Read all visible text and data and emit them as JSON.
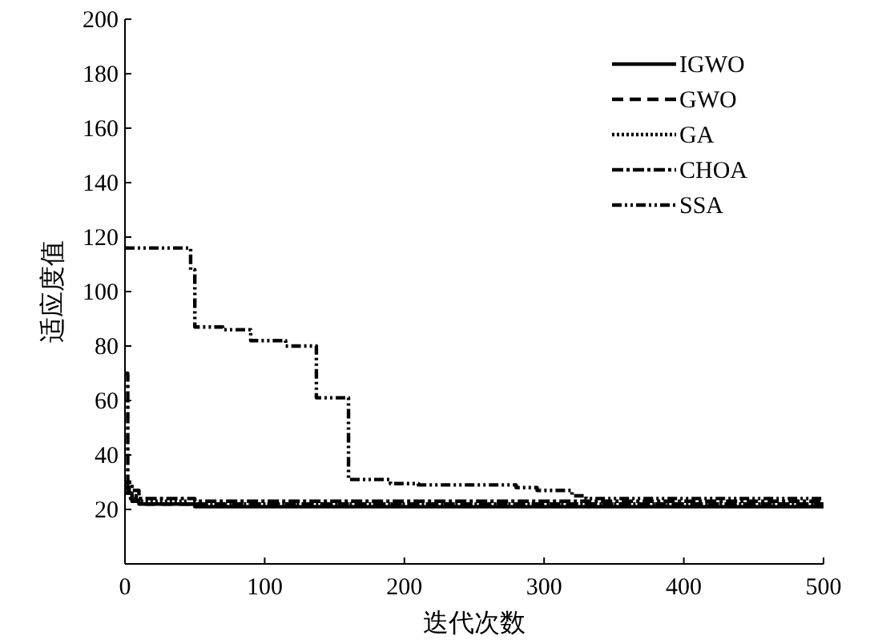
{
  "chart_data": {
    "type": "step",
    "xlabel": "迭代次数",
    "ylabel": "适应度值",
    "xlim": [
      0,
      500
    ],
    "ylim": [
      0,
      200
    ],
    "xticks": [
      0,
      100,
      200,
      300,
      400,
      500
    ],
    "yticks": [
      20,
      40,
      60,
      80,
      100,
      120,
      140,
      160,
      180,
      200
    ],
    "legend": "top right",
    "grid": false,
    "series": [
      {
        "name": "IGWO",
        "color": "#000000",
        "line_style": "solid",
        "x": [
          0,
          2,
          5,
          10,
          20,
          50,
          500
        ],
        "values": [
          30,
          26,
          23,
          22,
          22,
          21,
          21
        ]
      },
      {
        "name": "GWO",
        "color": "#000000",
        "line_style": "dashed",
        "x": [
          0,
          3,
          8,
          15,
          30,
          500
        ],
        "values": [
          28,
          25,
          23,
          22,
          22,
          22
        ]
      },
      {
        "name": "GA",
        "color": "#000000",
        "line_style": "dotted",
        "x": [
          0,
          4,
          10,
          25,
          45,
          500
        ],
        "values": [
          26,
          24,
          23,
          23,
          22,
          22
        ]
      },
      {
        "name": "CHOA",
        "color": "#000000",
        "line_style": "dashdot",
        "x": [
          0,
          2,
          5,
          10,
          45,
          50,
          500
        ],
        "values": [
          70,
          30,
          27,
          24,
          24,
          23,
          23
        ]
      },
      {
        "name": "SSA",
        "color": "#000000",
        "line_style": "dashdotdot",
        "x": [
          0,
          47,
          50,
          70,
          90,
          115,
          137,
          160,
          190,
          210,
          280,
          295,
          320,
          330,
          500
        ],
        "values": [
          116,
          108,
          87,
          86,
          82,
          80,
          61,
          31,
          29.5,
          29,
          28,
          27,
          25,
          24,
          24
        ]
      }
    ]
  }
}
